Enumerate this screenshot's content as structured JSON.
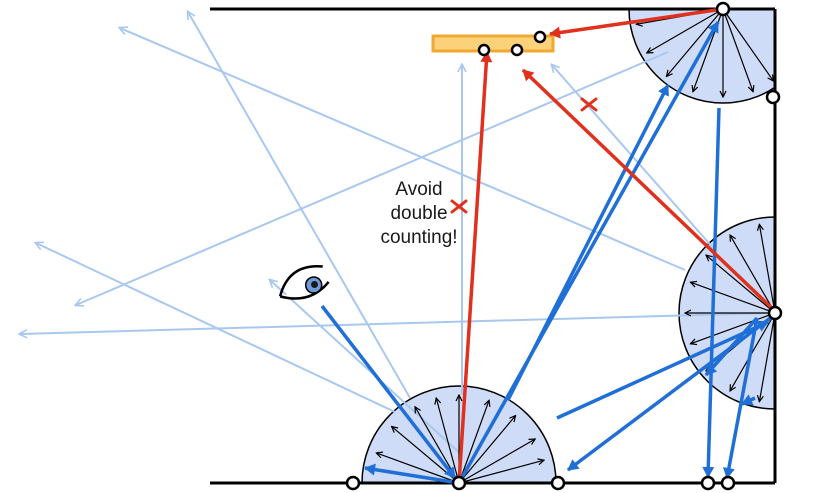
{
  "annotation": {
    "line1": "Avoid",
    "line2": "double",
    "line3": "counting!"
  },
  "icons": {
    "eye": "eye-icon",
    "light": "area-light-icon",
    "reject": "cross-mark-icon"
  },
  "colors": {
    "wall": "#000000",
    "hemisphere_fill": "#cfdcf7",
    "path_ray": "#1f6fd6",
    "faded_ray": "#a9c8ef",
    "rejected_ray": "#e0301e",
    "light_fill": "#fbd27a",
    "light_stroke": "#f0a830",
    "vertex_fill": "#ffffff"
  }
}
